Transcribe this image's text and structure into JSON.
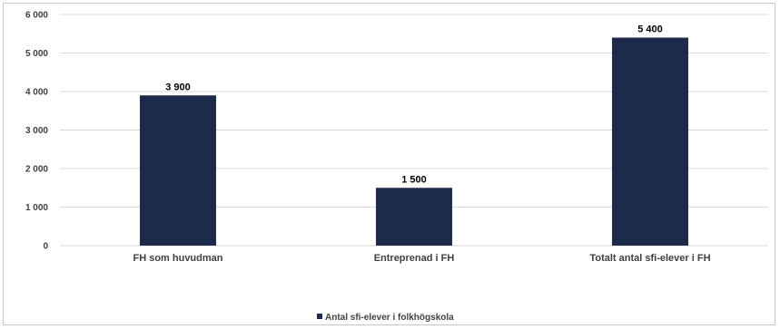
{
  "chart_data": {
    "type": "bar",
    "categories": [
      "FH som huvudman",
      "Entreprenad i FH",
      "Totalt antal sfi-elever i FH"
    ],
    "series": [
      {
        "name": "Antal sfi-elever i folkhögskola",
        "values": [
          3900,
          1500,
          5400
        ],
        "color": "#1c2b4b"
      }
    ],
    "data_labels": [
      "3 900",
      "1 500",
      "5 400"
    ],
    "yticks": [
      0,
      1000,
      2000,
      3000,
      4000,
      5000,
      6000
    ],
    "ytick_labels": [
      "0",
      "1 000",
      "2 000",
      "3 000",
      "4 000",
      "5 000",
      "6 000"
    ],
    "ylim": [
      0,
      6000
    ],
    "grid": true,
    "legend_position": "bottom",
    "title": "",
    "xlabel": "",
    "ylabel": ""
  }
}
